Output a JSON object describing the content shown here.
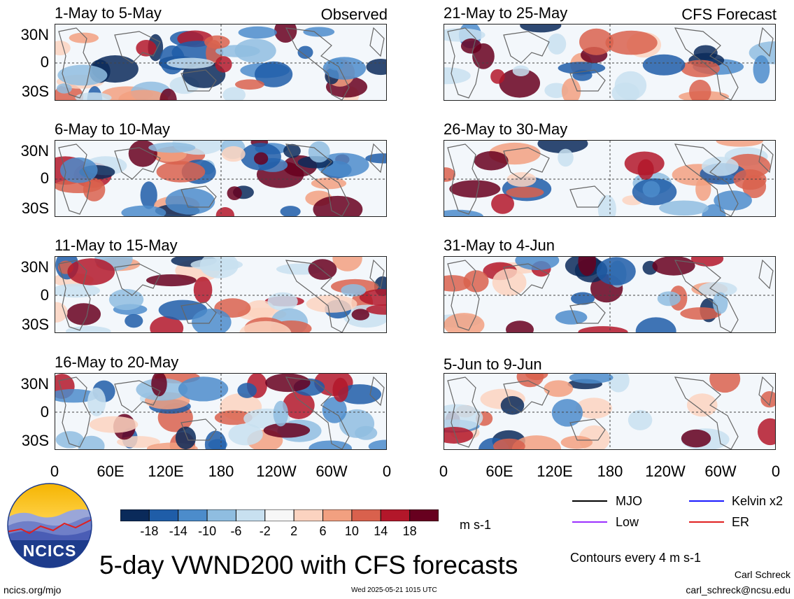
{
  "figure": {
    "main_title": "5-day VWND200 with CFS forecasts",
    "contours_note": "Contours every 4 m s-1",
    "units": "m s-1",
    "author": "Carl Schreck",
    "email": "carl_schreck@ncsu.edu",
    "website": "ncics.org/mjo",
    "timestamp": "Wed 2025-05-21 1015 UTC",
    "logo_text": "NCICS"
  },
  "legend": {
    "items": [
      {
        "label": "MJO",
        "color": "#000000"
      },
      {
        "label": "Kelvin x2",
        "color": "#1a1aff"
      },
      {
        "label": "Low",
        "color": "#9b30ff"
      },
      {
        "label": "ER",
        "color": "#e02020"
      }
    ]
  },
  "chart_data": {
    "type": "heatmap",
    "variable": "VWND200",
    "colorbar": {
      "tick_labels": [
        "-18",
        "-14",
        "-10",
        "-6",
        "-2",
        "2",
        "6",
        "10",
        "14",
        "18"
      ],
      "colors": [
        "#0a2a5a",
        "#1f5da8",
        "#4c8ccb",
        "#8fbde0",
        "#c8e0f0",
        "#f7f7f7",
        "#fbd3c0",
        "#f2a080",
        "#d9614d",
        "#b3172a",
        "#67001f"
      ]
    },
    "lat_ticks": [
      "30N",
      "0",
      "30S"
    ],
    "lon_ticks": [
      "0",
      "60E",
      "120E",
      "180",
      "120W",
      "60W",
      "0"
    ],
    "columns": [
      {
        "label": "Observed",
        "panels": [
          {
            "title": "1-May to 5-May"
          },
          {
            "title": "6-May to 10-May"
          },
          {
            "title": "11-May to 15-May"
          },
          {
            "title": "16-May to 20-May"
          }
        ]
      },
      {
        "label": "CFS Forecast",
        "panels": [
          {
            "title": "21-May to 25-May"
          },
          {
            "title": "26-May to 30-May"
          },
          {
            "title": "31-May to 4-Jun"
          },
          {
            "title": "5-Jun to 9-Jun"
          }
        ]
      }
    ]
  }
}
